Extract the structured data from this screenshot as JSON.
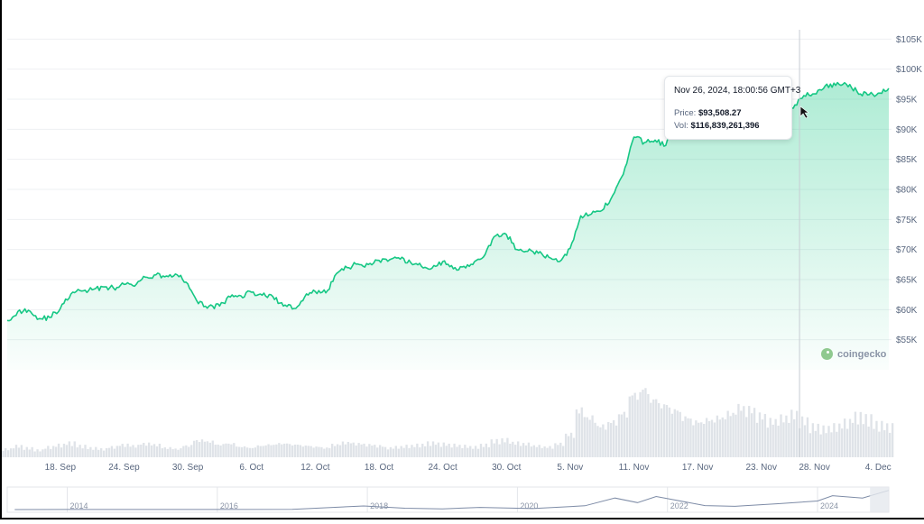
{
  "chart_data": {
    "type": "area",
    "title": "",
    "xlabel": "",
    "ylabel": "",
    "y_unit": "USD",
    "ylim": [
      50000,
      107000
    ],
    "y_ticks": [
      "$55K",
      "$60K",
      "$65K",
      "$70K",
      "$75K",
      "$80K",
      "$85K",
      "$90K",
      "$95K",
      "$100K",
      "$105K"
    ],
    "x_ticks": [
      "18. Sep",
      "24. Sep",
      "30. Sep",
      "6. Oct",
      "12. Oct",
      "18. Oct",
      "24. Oct",
      "30. Oct",
      "5. Nov",
      "11. Nov",
      "17. Nov",
      "23. Nov",
      "28. Nov",
      "4. Dec"
    ],
    "grid": true,
    "line_color": "#16c784",
    "area_color_top": "#16c784",
    "series": [
      {
        "dates": [
          "2024-09-13",
          "2024-09-14",
          "2024-09-15",
          "2024-09-16",
          "2024-09-17",
          "2024-09-18",
          "2024-09-19",
          "2024-09-20",
          "2024-09-21",
          "2024-09-22",
          "2024-09-23",
          "2024-09-24",
          "2024-09-25",
          "2024-09-26",
          "2024-09-27",
          "2024-09-28",
          "2024-09-29",
          "2024-09-30",
          "2024-10-01",
          "2024-10-02",
          "2024-10-03",
          "2024-10-04",
          "2024-10-05",
          "2024-10-06",
          "2024-10-07",
          "2024-10-08",
          "2024-10-09",
          "2024-10-10",
          "2024-10-11",
          "2024-10-12",
          "2024-10-13",
          "2024-10-14",
          "2024-10-15",
          "2024-10-16",
          "2024-10-17",
          "2024-10-18",
          "2024-10-19",
          "2024-10-20",
          "2024-10-21",
          "2024-10-22",
          "2024-10-23",
          "2024-10-24",
          "2024-10-25",
          "2024-10-26",
          "2024-10-27",
          "2024-10-28",
          "2024-10-29",
          "2024-10-30",
          "2024-10-31",
          "2024-11-01",
          "2024-11-02",
          "2024-11-03",
          "2024-11-04",
          "2024-11-05",
          "2024-11-06",
          "2024-11-07",
          "2024-11-08",
          "2024-11-09",
          "2024-11-10",
          "2024-11-11",
          "2024-11-12",
          "2024-11-13",
          "2024-11-14",
          "2024-11-15",
          "2024-11-16",
          "2024-11-17",
          "2024-11-18",
          "2024-11-19",
          "2024-11-20",
          "2024-11-21",
          "2024-11-22",
          "2024-11-23",
          "2024-11-24",
          "2024-11-25",
          "2024-11-26",
          "2024-11-27",
          "2024-11-28",
          "2024-11-29",
          "2024-11-30",
          "2024-12-01",
          "2024-12-02",
          "2024-12-03",
          "2024-12-04",
          "2024-12-05"
        ],
        "values": [
          58200,
          59700,
          59900,
          58500,
          58700,
          60200,
          62600,
          63100,
          63300,
          63800,
          63600,
          64200,
          63900,
          65400,
          65800,
          65600,
          65800,
          64300,
          61000,
          60600,
          60600,
          62100,
          62300,
          62900,
          62400,
          62200,
          60600,
          60200,
          62100,
          63000,
          62800,
          66000,
          67000,
          67600,
          67500,
          68200,
          68300,
          68400,
          67800,
          67200,
          66900,
          68000,
          66800,
          67200,
          68000,
          69200,
          72300,
          72500,
          70000,
          69700,
          69400,
          68700,
          68000,
          70200,
          75600,
          75900,
          76500,
          79000,
          82500,
          88700,
          87800,
          88200,
          87300,
          91000,
          90700,
          90500,
          91500,
          92300,
          94500,
          98000,
          98200,
          97600,
          98100,
          95500,
          93500,
          95600,
          95900,
          97200,
          97300,
          97500,
          96300,
          95700,
          96000,
          96800
        ]
      }
    ],
    "volume_relative": [
      8,
      11,
      9,
      7,
      10,
      12,
      14,
      11,
      9,
      8,
      10,
      12,
      11,
      13,
      12,
      9,
      8,
      11,
      16,
      15,
      12,
      13,
      10,
      9,
      11,
      12,
      13,
      12,
      11,
      10,
      9,
      12,
      14,
      13,
      12,
      11,
      9,
      10,
      11,
      12,
      14,
      13,
      12,
      11,
      10,
      12,
      16,
      17,
      14,
      13,
      11,
      10,
      13,
      22,
      45,
      38,
      30,
      34,
      42,
      60,
      65,
      55,
      50,
      45,
      38,
      34,
      36,
      38,
      42,
      48,
      46,
      40,
      35,
      38,
      42,
      36,
      30,
      28,
      30,
      34,
      40,
      38,
      32,
      30
    ],
    "hover": {
      "date": "2024-11-26",
      "timestamp": "Nov 26, 2024, 18:00:56 GMT+3",
      "price_label": "Price:",
      "price": "$93,508.27",
      "vol_label": "Vol:",
      "vol": "$116,839,261,396"
    },
    "navigator": {
      "years": [
        "2014",
        "2016",
        "2018",
        "2020",
        "2022",
        "2024"
      ]
    }
  },
  "watermark": {
    "text": "coingecko"
  }
}
